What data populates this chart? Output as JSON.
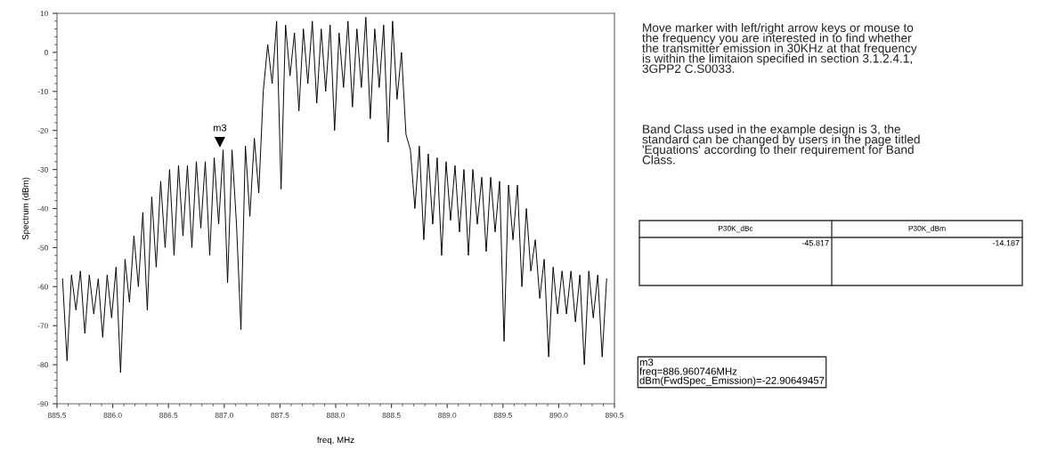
{
  "chart_data": {
    "type": "line",
    "xlabel": "freq, MHz",
    "ylabel": "Spectrum (dBm)",
    "xlim": [
      885.5,
      890.5
    ],
    "xticks": [
      885.5,
      {
        "value": 886.0,
        "label": "886.0"
      },
      886.5,
      {
        "value": 887.0,
        "label": "887.0"
      },
      887.5,
      {
        "value": 888.0,
        "label": "888.0"
      },
      888.5,
      {
        "value": 889.0,
        "label": "889.0"
      },
      889.5,
      {
        "value": 890.0,
        "label": "890.0"
      },
      890.5
    ],
    "ylim": [
      -90,
      10
    ],
    "yticks": [
      -90,
      -80,
      -70,
      -60,
      -50,
      -40,
      -30,
      -20,
      -10,
      0,
      10
    ],
    "grid": false,
    "legend": false,
    "marker": "none",
    "line_style": "solid",
    "series": [
      {
        "color": "#000000",
        "x": [
          885.55,
          885.59,
          885.63,
          885.67,
          885.71,
          885.75,
          885.79,
          885.83,
          885.87,
          885.91,
          885.95,
          885.99,
          886.03,
          886.07,
          886.11,
          886.15,
          886.19,
          886.23,
          886.27,
          886.31,
          886.35,
          886.39,
          886.43,
          886.47,
          886.51,
          886.55,
          886.59,
          886.63,
          886.67,
          886.71,
          886.75,
          886.79,
          886.83,
          886.87,
          886.91,
          886.95,
          886.99,
          887.03,
          887.07,
          887.11,
          887.15,
          887.19,
          887.23,
          887.27,
          887.31,
          887.35,
          887.39,
          887.43,
          887.47,
          887.51,
          887.55,
          887.59,
          887.63,
          887.67,
          887.71,
          887.75,
          887.79,
          887.83,
          887.87,
          887.91,
          887.95,
          887.99,
          888.03,
          888.07,
          888.11,
          888.15,
          888.19,
          888.23,
          888.27,
          888.31,
          888.35,
          888.39,
          888.43,
          888.47,
          888.51,
          888.55,
          888.59,
          888.63,
          888.67,
          888.71,
          888.75,
          888.79,
          888.83,
          888.87,
          888.91,
          888.95,
          888.99,
          889.03,
          889.07,
          889.11,
          889.15,
          889.19,
          889.23,
          889.27,
          889.31,
          889.35,
          889.39,
          889.43,
          889.47,
          889.51,
          889.55,
          889.59,
          889.63,
          889.67,
          889.71,
          889.75,
          889.79,
          889.83,
          889.87,
          889.91,
          889.95,
          889.99,
          890.03,
          890.07,
          890.11,
          890.15,
          890.19,
          890.23,
          890.27,
          890.31,
          890.35,
          890.39,
          890.43
        ],
        "values": [
          -58,
          -79,
          -57,
          -66,
          -56,
          -72,
          -57,
          -67,
          -58,
          -73,
          -57,
          -68,
          -55,
          -82,
          -53,
          -64,
          -47,
          -60,
          -41,
          -66,
          -37,
          -55,
          -33,
          -50,
          -30,
          -52,
          -29,
          -47,
          -29,
          -50,
          -28,
          -45,
          -28,
          -52,
          -27,
          -44,
          -25,
          -59,
          -25,
          -44,
          -71,
          -24,
          -42,
          -22,
          -36,
          -10,
          2,
          -8,
          8,
          -35,
          7,
          -6,
          5,
          -15,
          6,
          -8,
          8,
          -13,
          6,
          -10,
          7,
          -20,
          5,
          -9,
          8,
          -14,
          6,
          -9,
          9,
          -17,
          6,
          -9,
          7,
          -23,
          8,
          -12,
          0,
          -21,
          -25,
          -40,
          -24,
          -48,
          -26,
          -44,
          -27,
          -52,
          -28,
          -43,
          -29,
          -46,
          -30,
          -52,
          -30,
          -44,
          -32,
          -51,
          -32,
          -46,
          -33,
          -74,
          -34,
          -48,
          -34,
          -60,
          -40,
          -56,
          -48,
          -63,
          -53,
          -78,
          -55,
          -67,
          -56,
          -67,
          -56,
          -69,
          -57,
          -80,
          -56,
          -68,
          -57,
          -78,
          -58
        ]
      }
    ],
    "annotations": [
      {
        "text": "m3",
        "x": 886.960746,
        "y": -22.90649457
      },
      "Move marker with left/right arrow keys or mouse to\nthe frequency you are interested in to find whether\nthe transmitter emission in 30KHz at that frequency\nis within the limitaion specified in section 3.1.2.4.1,\n3GPP2 C.S0033.",
      "Band Class used in the example design is 3, the\nstandard can be changed by users in the page titled\n'Equations' according to their requirement for Band\nClass.",
      "P30K_dBc",
      "-45.817",
      "P30K_dBm",
      "-14.187",
      "m3\nfreq=886.960746MHz\ndBm(FwdSpec_Emission)=-22.90649457"
    ]
  }
}
